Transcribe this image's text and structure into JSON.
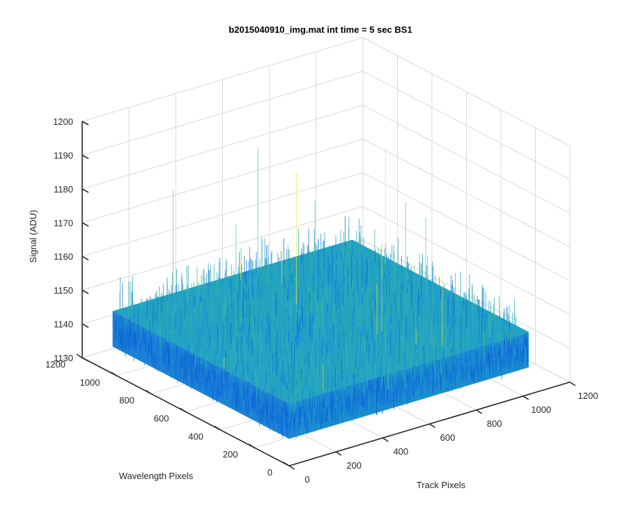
{
  "chart_data": {
    "type": "surface",
    "title": "b2015040910_img.mat int time = 5 sec   BS1",
    "xlabel": "Track Pixels",
    "ylabel": "Wavelength Pixels",
    "zlabel": "Signal (ADU)",
    "x_range": [
      0,
      1200
    ],
    "y_range": [
      0,
      1200
    ],
    "z_range": [
      1130,
      1200
    ],
    "x_ticks": [
      "0",
      "200",
      "400",
      "600",
      "800",
      "1000",
      "1200"
    ],
    "y_ticks": [
      "0",
      "200",
      "400",
      "600",
      "800",
      "1000",
      "1200"
    ],
    "z_ticks": [
      "1130",
      "1140",
      "1150",
      "1160",
      "1170",
      "1180",
      "1190",
      "1200"
    ],
    "surface": {
      "x_extent": [
        0,
        1024
      ],
      "y_extent": [
        0,
        1024
      ],
      "mean_signal": 1145,
      "noise_span": [
        1135,
        1155
      ],
      "max_spike": 1188
    },
    "grid": true,
    "colormap": "parula",
    "colors": {
      "low": "#0d63d8",
      "mid": "#1a9ec4",
      "high": "#3db8a6",
      "peak": "#fbe52c"
    }
  }
}
